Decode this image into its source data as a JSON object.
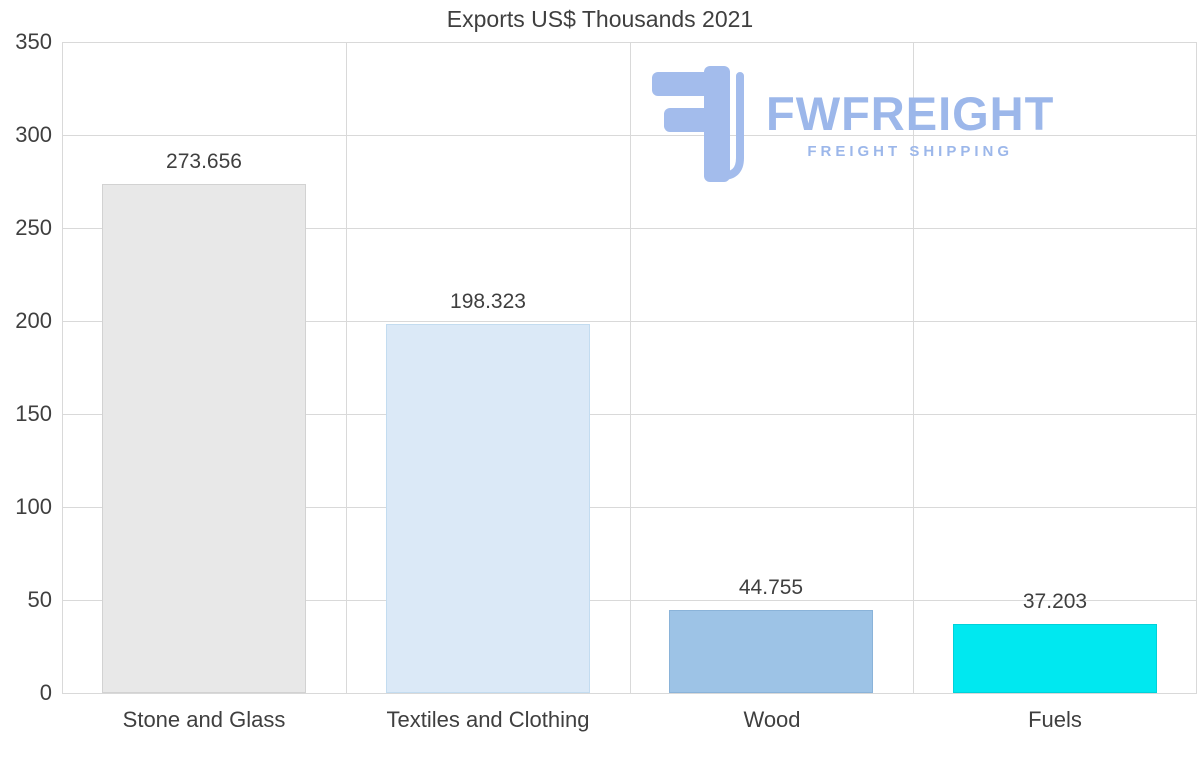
{
  "chart_data": {
    "type": "bar",
    "title": "Exports US$ Thousands 2021",
    "categories": [
      "Stone and Glass",
      "Textiles and Clothing",
      "Wood",
      "Fuels"
    ],
    "values": [
      273.656,
      198.323,
      44.755,
      37.203
    ],
    "value_labels": [
      "273.656",
      "198.323",
      "44.755",
      "37.203"
    ],
    "bar_colors": [
      "#e8e8e8",
      "#dbe9f7",
      "#9dc3e6",
      "#00e8f0"
    ],
    "bar_border_colors": [
      "#d2d2d2",
      "#c3dcf0",
      "#8ab3d9",
      "#00d2da"
    ],
    "xlabel": "",
    "ylabel": "",
    "ylim": [
      0,
      350
    ],
    "yticks": [
      0,
      50,
      100,
      150,
      200,
      250,
      300,
      350
    ],
    "grid": true,
    "legend": "none",
    "text_color": "#3f3f3f",
    "grid_color": "#d9d9d9"
  },
  "watermark": {
    "brand": "FWFREIGHT",
    "tagline": "FREIGHT SHIPPING",
    "color": "#9cb7ea"
  }
}
